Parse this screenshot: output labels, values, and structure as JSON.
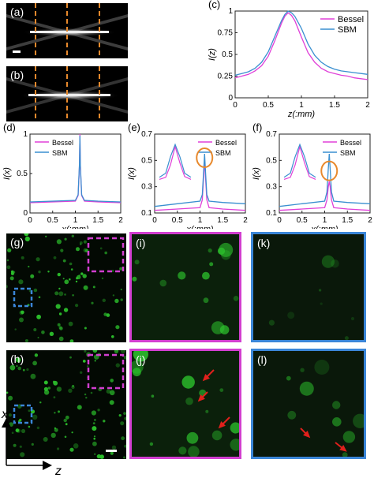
{
  "panels": {
    "a": "(a)",
    "b": "(b)",
    "c": "(c)",
    "d": "(d)",
    "e": "(e)",
    "f": "(f)",
    "g": "(g)",
    "h": "(h)",
    "i": "(i)",
    "j": "(j)",
    "k": "(k)",
    "l": "(l)"
  },
  "colors": {
    "bessel": "#e040d8",
    "sbm": "#3a8fd0",
    "dash_orange": "#e8892c",
    "box_magenta": "#d23ed0",
    "box_blue": "#3b86d8",
    "arrow_red": "#e0201c",
    "fluor_green": "#2cc02c"
  },
  "axis_prefix": {
    "c": "(c)",
    "d": "(d)",
    "e": "(e)",
    "f": "(f)"
  },
  "chart_data": [
    {
      "id": "c",
      "type": "line",
      "ylabel": "I(z)",
      "xlabel": "z(:mm)",
      "xlim": [
        0,
        2
      ],
      "ylim": [
        0,
        1
      ],
      "xticks": [
        "0",
        "0.5",
        "1",
        "1.5",
        "2"
      ],
      "yticks": [
        "0",
        "0.25",
        "0.5",
        "0.75",
        "1"
      ],
      "legend": {
        "position": "top-right"
      },
      "series": [
        {
          "name": "Bessel",
          "x": [
            0,
            0.1,
            0.2,
            0.3,
            0.4,
            0.5,
            0.6,
            0.7,
            0.75,
            0.8,
            0.85,
            0.9,
            1.0,
            1.1,
            1.2,
            1.3,
            1.4,
            1.5,
            1.6,
            1.7,
            1.8,
            1.9,
            2.0
          ],
          "y": [
            0.23,
            0.25,
            0.27,
            0.31,
            0.37,
            0.48,
            0.66,
            0.86,
            0.94,
            0.98,
            0.95,
            0.89,
            0.7,
            0.52,
            0.41,
            0.34,
            0.3,
            0.28,
            0.26,
            0.25,
            0.23,
            0.22,
            0.21
          ]
        },
        {
          "name": "SBM",
          "x": [
            0,
            0.1,
            0.2,
            0.3,
            0.4,
            0.5,
            0.6,
            0.7,
            0.75,
            0.8,
            0.85,
            0.9,
            1.0,
            1.1,
            1.2,
            1.3,
            1.4,
            1.5,
            1.6,
            1.7,
            1.8,
            1.9,
            2.0
          ],
          "y": [
            0.26,
            0.28,
            0.3,
            0.34,
            0.41,
            0.53,
            0.71,
            0.89,
            0.96,
            1.0,
            0.98,
            0.94,
            0.8,
            0.62,
            0.49,
            0.41,
            0.36,
            0.33,
            0.31,
            0.3,
            0.29,
            0.28,
            0.27
          ]
        }
      ]
    },
    {
      "id": "d",
      "type": "line",
      "ylabel": "I(x)",
      "xlabel": "x(:mm)",
      "xlim": [
        0,
        2
      ],
      "ylim": [
        0,
        1
      ],
      "xticks": [
        "0",
        "0.5",
        "1",
        "1.5",
        "2"
      ],
      "yticks": [
        "0",
        "0.5",
        "1"
      ],
      "legend": {
        "position": "top-left"
      },
      "series": [
        {
          "name": "Bessel",
          "x": [
            0,
            0.5,
            1.0,
            1.06,
            1.09,
            1.1,
            1.11,
            1.14,
            1.2,
            1.5,
            2.0
          ],
          "y": [
            0.13,
            0.14,
            0.15,
            0.22,
            0.6,
            1.0,
            0.6,
            0.22,
            0.15,
            0.14,
            0.13
          ]
        },
        {
          "name": "SBM",
          "x": [
            0,
            0.5,
            1.0,
            1.06,
            1.09,
            1.1,
            1.11,
            1.14,
            1.2,
            1.5,
            2.0
          ],
          "y": [
            0.14,
            0.15,
            0.16,
            0.23,
            0.62,
            0.98,
            0.62,
            0.23,
            0.16,
            0.15,
            0.14
          ]
        }
      ]
    },
    {
      "id": "e",
      "type": "line",
      "ylabel": "I(x)",
      "xlabel": "x(:mm)",
      "xlim": [
        0,
        2
      ],
      "ylim": [
        0.1,
        0.7
      ],
      "xticks": [
        "0",
        "0.5",
        "1",
        "1.5",
        "2"
      ],
      "yticks": [
        "0.1",
        "0.3",
        "0.5",
        "0.7"
      ],
      "legend": {
        "position": "top-right"
      },
      "series": [
        {
          "name": "Bessel",
          "x": [
            0,
            0.5,
            1.0,
            1.05,
            1.08,
            1.1,
            1.12,
            1.15,
            1.2,
            1.5,
            2.0
          ],
          "y": [
            0.12,
            0.13,
            0.14,
            0.2,
            0.38,
            0.5,
            0.38,
            0.2,
            0.14,
            0.13,
            0.12
          ]
        },
        {
          "name": "SBM",
          "x": [
            0,
            0.5,
            1.0,
            1.05,
            1.08,
            1.1,
            1.12,
            1.15,
            1.2,
            1.5,
            2.0
          ],
          "y": [
            0.15,
            0.17,
            0.19,
            0.24,
            0.42,
            0.55,
            0.42,
            0.24,
            0.19,
            0.18,
            0.17
          ]
        }
      ]
    },
    {
      "id": "f",
      "type": "line",
      "ylabel": "I(x)",
      "xlabel": "x(:mm)",
      "xlim": [
        0,
        2
      ],
      "ylim": [
        0.1,
        0.7
      ],
      "xticks": [
        "0",
        "0.5",
        "1",
        "1.5",
        "2"
      ],
      "yticks": [
        "0.1",
        "0.3",
        "0.5",
        "0.7"
      ],
      "legend": {
        "position": "top-right"
      },
      "series": [
        {
          "name": "Bessel",
          "x": [
            0,
            0.5,
            1.0,
            1.05,
            1.08,
            1.1,
            1.12,
            1.15,
            1.2,
            1.5,
            2.0
          ],
          "y": [
            0.12,
            0.13,
            0.14,
            0.2,
            0.3,
            0.34,
            0.3,
            0.2,
            0.14,
            0.13,
            0.12
          ]
        },
        {
          "name": "SBM",
          "x": [
            0,
            0.5,
            1.0,
            1.05,
            1.08,
            1.1,
            1.12,
            1.15,
            1.2,
            1.5,
            2.0
          ],
          "y": [
            0.15,
            0.17,
            0.19,
            0.26,
            0.44,
            0.55,
            0.44,
            0.26,
            0.19,
            0.18,
            0.17
          ]
        }
      ]
    }
  ],
  "axes_labels": {
    "x_axis": "x",
    "z_axis": "z"
  }
}
